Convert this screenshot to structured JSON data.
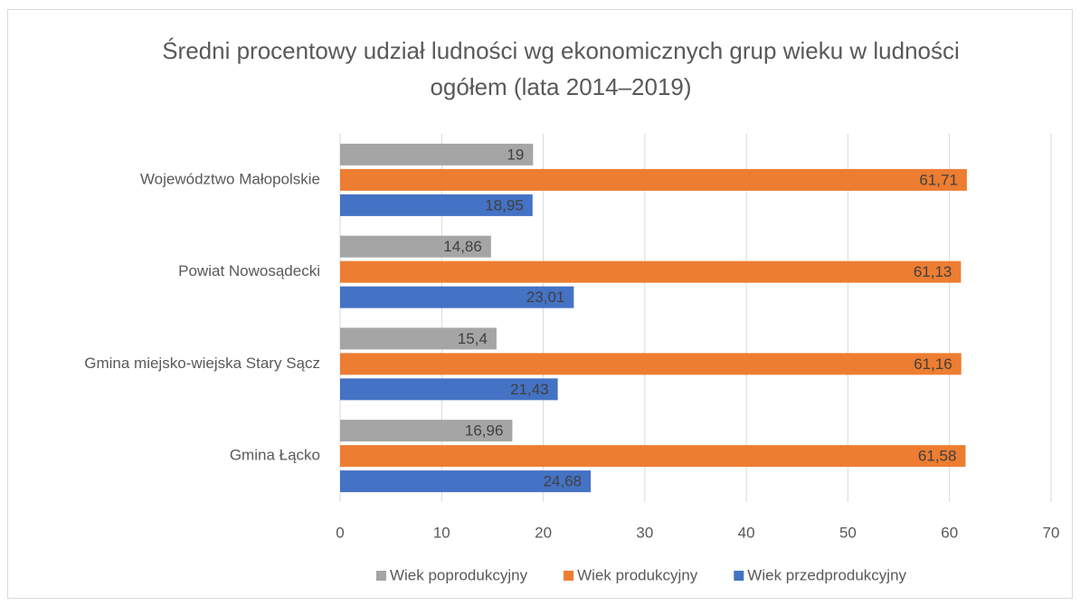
{
  "chart_data": {
    "type": "hbar",
    "title": "Średni procentowy udział ludności wg ekonomicznych grup wieku w ludności ogółem (lata 2014–2019)",
    "categories": [
      "Województwo Małopolskie",
      "Powiat Nowosądecki",
      "Gmina miejsko-wiejska Stary Sącz",
      "Gmina Łącko"
    ],
    "series": [
      {
        "name": "Wiek poprodukcyjny",
        "color": "#a5a5a5",
        "values": [
          19,
          14.86,
          15.4,
          16.96
        ],
        "value_labels": [
          "19",
          "14,86",
          "15,4",
          "16,96"
        ]
      },
      {
        "name": "Wiek produkcyjny",
        "color": "#ed7d31",
        "values": [
          61.71,
          61.13,
          61.16,
          61.58
        ],
        "value_labels": [
          "61,71",
          "61,13",
          "61,16",
          "61,58"
        ]
      },
      {
        "name": "Wiek przedprodukcyjny",
        "color": "#4472c4",
        "values": [
          18.95,
          23.01,
          21.43,
          24.68
        ],
        "value_labels": [
          "18,95",
          "23,01",
          "21,43",
          "24,68"
        ]
      }
    ],
    "xlim": [
      0,
      70
    ],
    "xticks": [
      0,
      10,
      20,
      30,
      40,
      50,
      60,
      70
    ],
    "grid": true,
    "legend": "bottom"
  }
}
